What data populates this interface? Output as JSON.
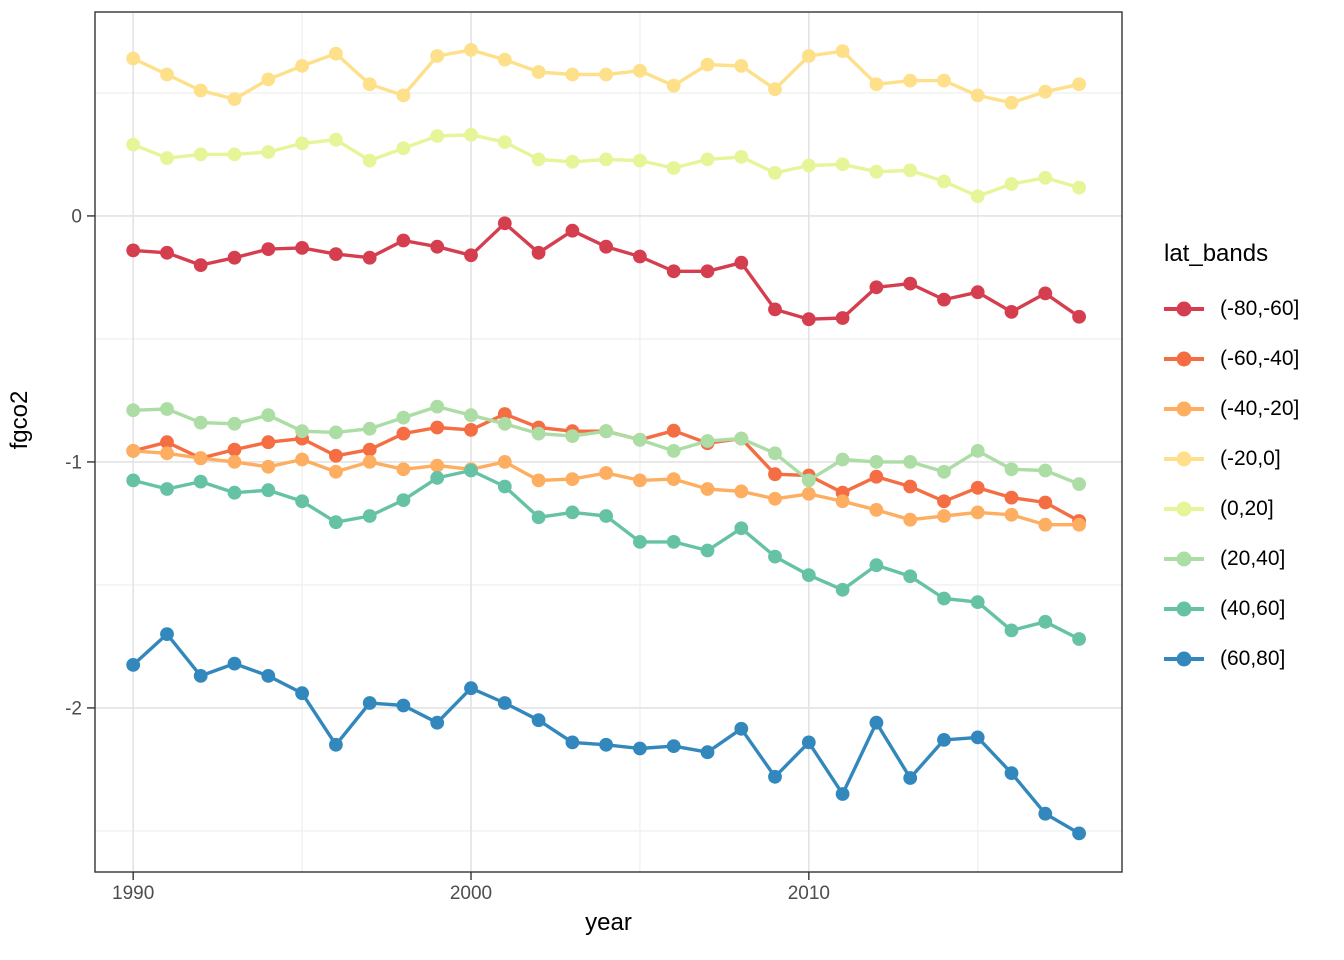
{
  "chart_data": {
    "type": "line",
    "title": "",
    "xlabel": "year",
    "ylabel": "fgco2",
    "legend_title": "lat_bands",
    "legend_position": "right",
    "grid": "major-minor",
    "panel_border_color": "#333333",
    "grid_major_color": "#e3e3e3",
    "grid_minor_color": "#f0f0f0",
    "tick_label_color": "#4d4d4d",
    "xlim": [
      1988.87,
      2019.27
    ],
    "ylim": [
      -2.667,
      0.829
    ],
    "x_ticks": [
      1990,
      2000,
      2010
    ],
    "x_tick_labels": [
      "1990",
      "2000",
      "2010"
    ],
    "x_minor_ticks": [
      1995,
      2005,
      2015
    ],
    "y_ticks": [
      0,
      -1,
      -2
    ],
    "y_tick_labels": [
      "0",
      "-1",
      "-2"
    ],
    "y_minor_ticks": [
      0.5,
      -0.5,
      -1.5,
      -2.5
    ],
    "x": [
      1990,
      1991,
      1992,
      1993,
      1994,
      1995,
      1996,
      1997,
      1998,
      1999,
      2000,
      2001,
      2002,
      2003,
      2004,
      2005,
      2006,
      2007,
      2008,
      2009,
      2010,
      2011,
      2012,
      2013,
      2014,
      2015,
      2016,
      2017,
      2018
    ],
    "series": [
      {
        "name": "(-80,-60]",
        "color": "#d53e4f",
        "values": [
          -0.14,
          -0.15,
          -0.2,
          -0.17,
          -0.135,
          -0.13,
          -0.155,
          -0.17,
          -0.1,
          -0.125,
          -0.16,
          -0.03,
          -0.15,
          -0.06,
          -0.125,
          -0.165,
          -0.225,
          -0.225,
          -0.19,
          -0.38,
          -0.42,
          -0.415,
          -0.29,
          -0.275,
          -0.34,
          -0.31,
          -0.39,
          -0.315,
          -0.41
        ]
      },
      {
        "name": "(-60,-40]",
        "color": "#f46d43",
        "values": [
          -0.955,
          -0.92,
          -0.985,
          -0.95,
          -0.92,
          -0.905,
          -0.975,
          -0.95,
          -0.885,
          -0.86,
          -0.87,
          -0.805,
          -0.86,
          -0.875,
          -0.875,
          -0.91,
          -0.873,
          -0.924,
          -0.905,
          -1.05,
          -1.055,
          -1.125,
          -1.06,
          -1.1,
          -1.16,
          -1.105,
          -1.145,
          -1.165,
          -1.24
        ]
      },
      {
        "name": "(-40,-20]",
        "color": "#fdae61",
        "values": [
          -0.955,
          -0.965,
          -0.985,
          -1.0,
          -1.02,
          -0.99,
          -1.04,
          -1.0,
          -1.03,
          -1.015,
          -1.03,
          -1.0,
          -1.075,
          -1.07,
          -1.045,
          -1.075,
          -1.07,
          -1.11,
          -1.12,
          -1.15,
          -1.13,
          -1.16,
          -1.195,
          -1.235,
          -1.22,
          -1.205,
          -1.215,
          -1.255,
          -1.255
        ]
      },
      {
        "name": "(-20,0]",
        "color": "#fee08b",
        "values": [
          0.64,
          0.575,
          0.51,
          0.475,
          0.555,
          0.61,
          0.66,
          0.535,
          0.49,
          0.65,
          0.675,
          0.635,
          0.585,
          0.575,
          0.575,
          0.59,
          0.53,
          0.615,
          0.61,
          0.515,
          0.65,
          0.67,
          0.535,
          0.55,
          0.55,
          0.49,
          0.46,
          0.505,
          0.535
        ]
      },
      {
        "name": "(0,20]",
        "color": "#e6f598",
        "values": [
          0.29,
          0.235,
          0.25,
          0.25,
          0.26,
          0.295,
          0.31,
          0.225,
          0.275,
          0.325,
          0.33,
          0.3,
          0.23,
          0.22,
          0.23,
          0.225,
          0.195,
          0.23,
          0.24,
          0.175,
          0.205,
          0.21,
          0.18,
          0.185,
          0.14,
          0.08,
          0.13,
          0.155,
          0.115
        ]
      },
      {
        "name": "(20,40]",
        "color": "#abdda4",
        "values": [
          -0.79,
          -0.785,
          -0.84,
          -0.845,
          -0.81,
          -0.875,
          -0.88,
          -0.865,
          -0.82,
          -0.775,
          -0.81,
          -0.845,
          -0.885,
          -0.895,
          -0.875,
          -0.91,
          -0.955,
          -0.915,
          -0.905,
          -0.965,
          -1.075,
          -0.99,
          -1.0,
          -1.0,
          -1.04,
          -0.955,
          -1.03,
          -1.035,
          -1.09
        ]
      },
      {
        "name": "(40,60]",
        "color": "#66c2a5",
        "values": [
          -1.075,
          -1.11,
          -1.08,
          -1.125,
          -1.115,
          -1.16,
          -1.245,
          -1.22,
          -1.155,
          -1.065,
          -1.035,
          -1.1,
          -1.225,
          -1.205,
          -1.22,
          -1.325,
          -1.325,
          -1.36,
          -1.27,
          -1.385,
          -1.46,
          -1.52,
          -1.42,
          -1.465,
          -1.555,
          -1.57,
          -1.685,
          -1.65,
          -1.72
        ]
      },
      {
        "name": "(60,80]",
        "color": "#3288bd",
        "values": [
          -1.825,
          -1.7,
          -1.87,
          -1.82,
          -1.87,
          -1.94,
          -2.15,
          -1.98,
          -1.99,
          -2.06,
          -1.92,
          -1.98,
          -2.05,
          -2.14,
          -2.15,
          -2.165,
          -2.155,
          -2.18,
          -2.085,
          -2.28,
          -2.14,
          -2.35,
          -2.06,
          -2.285,
          -2.13,
          -2.12,
          -2.265,
          -2.43,
          -2.51
        ]
      }
    ]
  }
}
